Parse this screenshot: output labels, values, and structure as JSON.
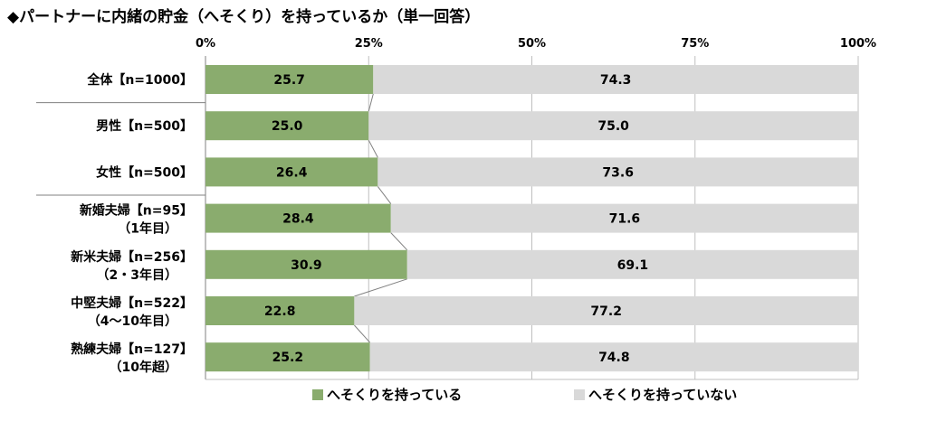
{
  "title": "◆パートナーに内緒の貯金（へそくり）を持っているか（単一回答）",
  "chart_data": {
    "type": "bar",
    "stacked": true,
    "orientation": "horizontal",
    "title": "◆パートナーに内緒の貯金（へそくり）を持っているか（単一回答）",
    "xlabel": "",
    "ylabel": "",
    "xlim": [
      0,
      100
    ],
    "x_ticks": [
      "0%",
      "25%",
      "50%",
      "75%",
      "100%"
    ],
    "grid": true,
    "legend_position": "bottom",
    "categories": [
      [
        "全体【n=1000】"
      ],
      [
        "男性【n=500】"
      ],
      [
        "女性【n=500】"
      ],
      [
        "新婚夫婦【n=95】",
        "（1年目）"
      ],
      [
        "新米夫婦【n=256】",
        "（2・3年目）"
      ],
      [
        "中堅夫婦【n=522】",
        "（4～10年目）"
      ],
      [
        "熟練夫婦【n=127】",
        "（10年超）"
      ]
    ],
    "group_separators_after": [
      0,
      2
    ],
    "series": [
      {
        "name": "へそくりを持っている",
        "color": "#8aac6e",
        "values": [
          25.7,
          25.0,
          26.4,
          28.4,
          30.9,
          22.8,
          25.2
        ],
        "labels": [
          "25.7",
          "25.0",
          "26.4",
          "28.4",
          "30.9",
          "22.8",
          "25.2"
        ]
      },
      {
        "name": "へそくりを持っていない",
        "color": "#d9d9d9",
        "values": [
          74.3,
          75.0,
          73.6,
          71.6,
          69.1,
          77.2,
          74.8
        ],
        "labels": [
          "74.3",
          "75.0",
          "73.6",
          "71.6",
          "69.1",
          "77.2",
          "74.8"
        ]
      }
    ]
  }
}
